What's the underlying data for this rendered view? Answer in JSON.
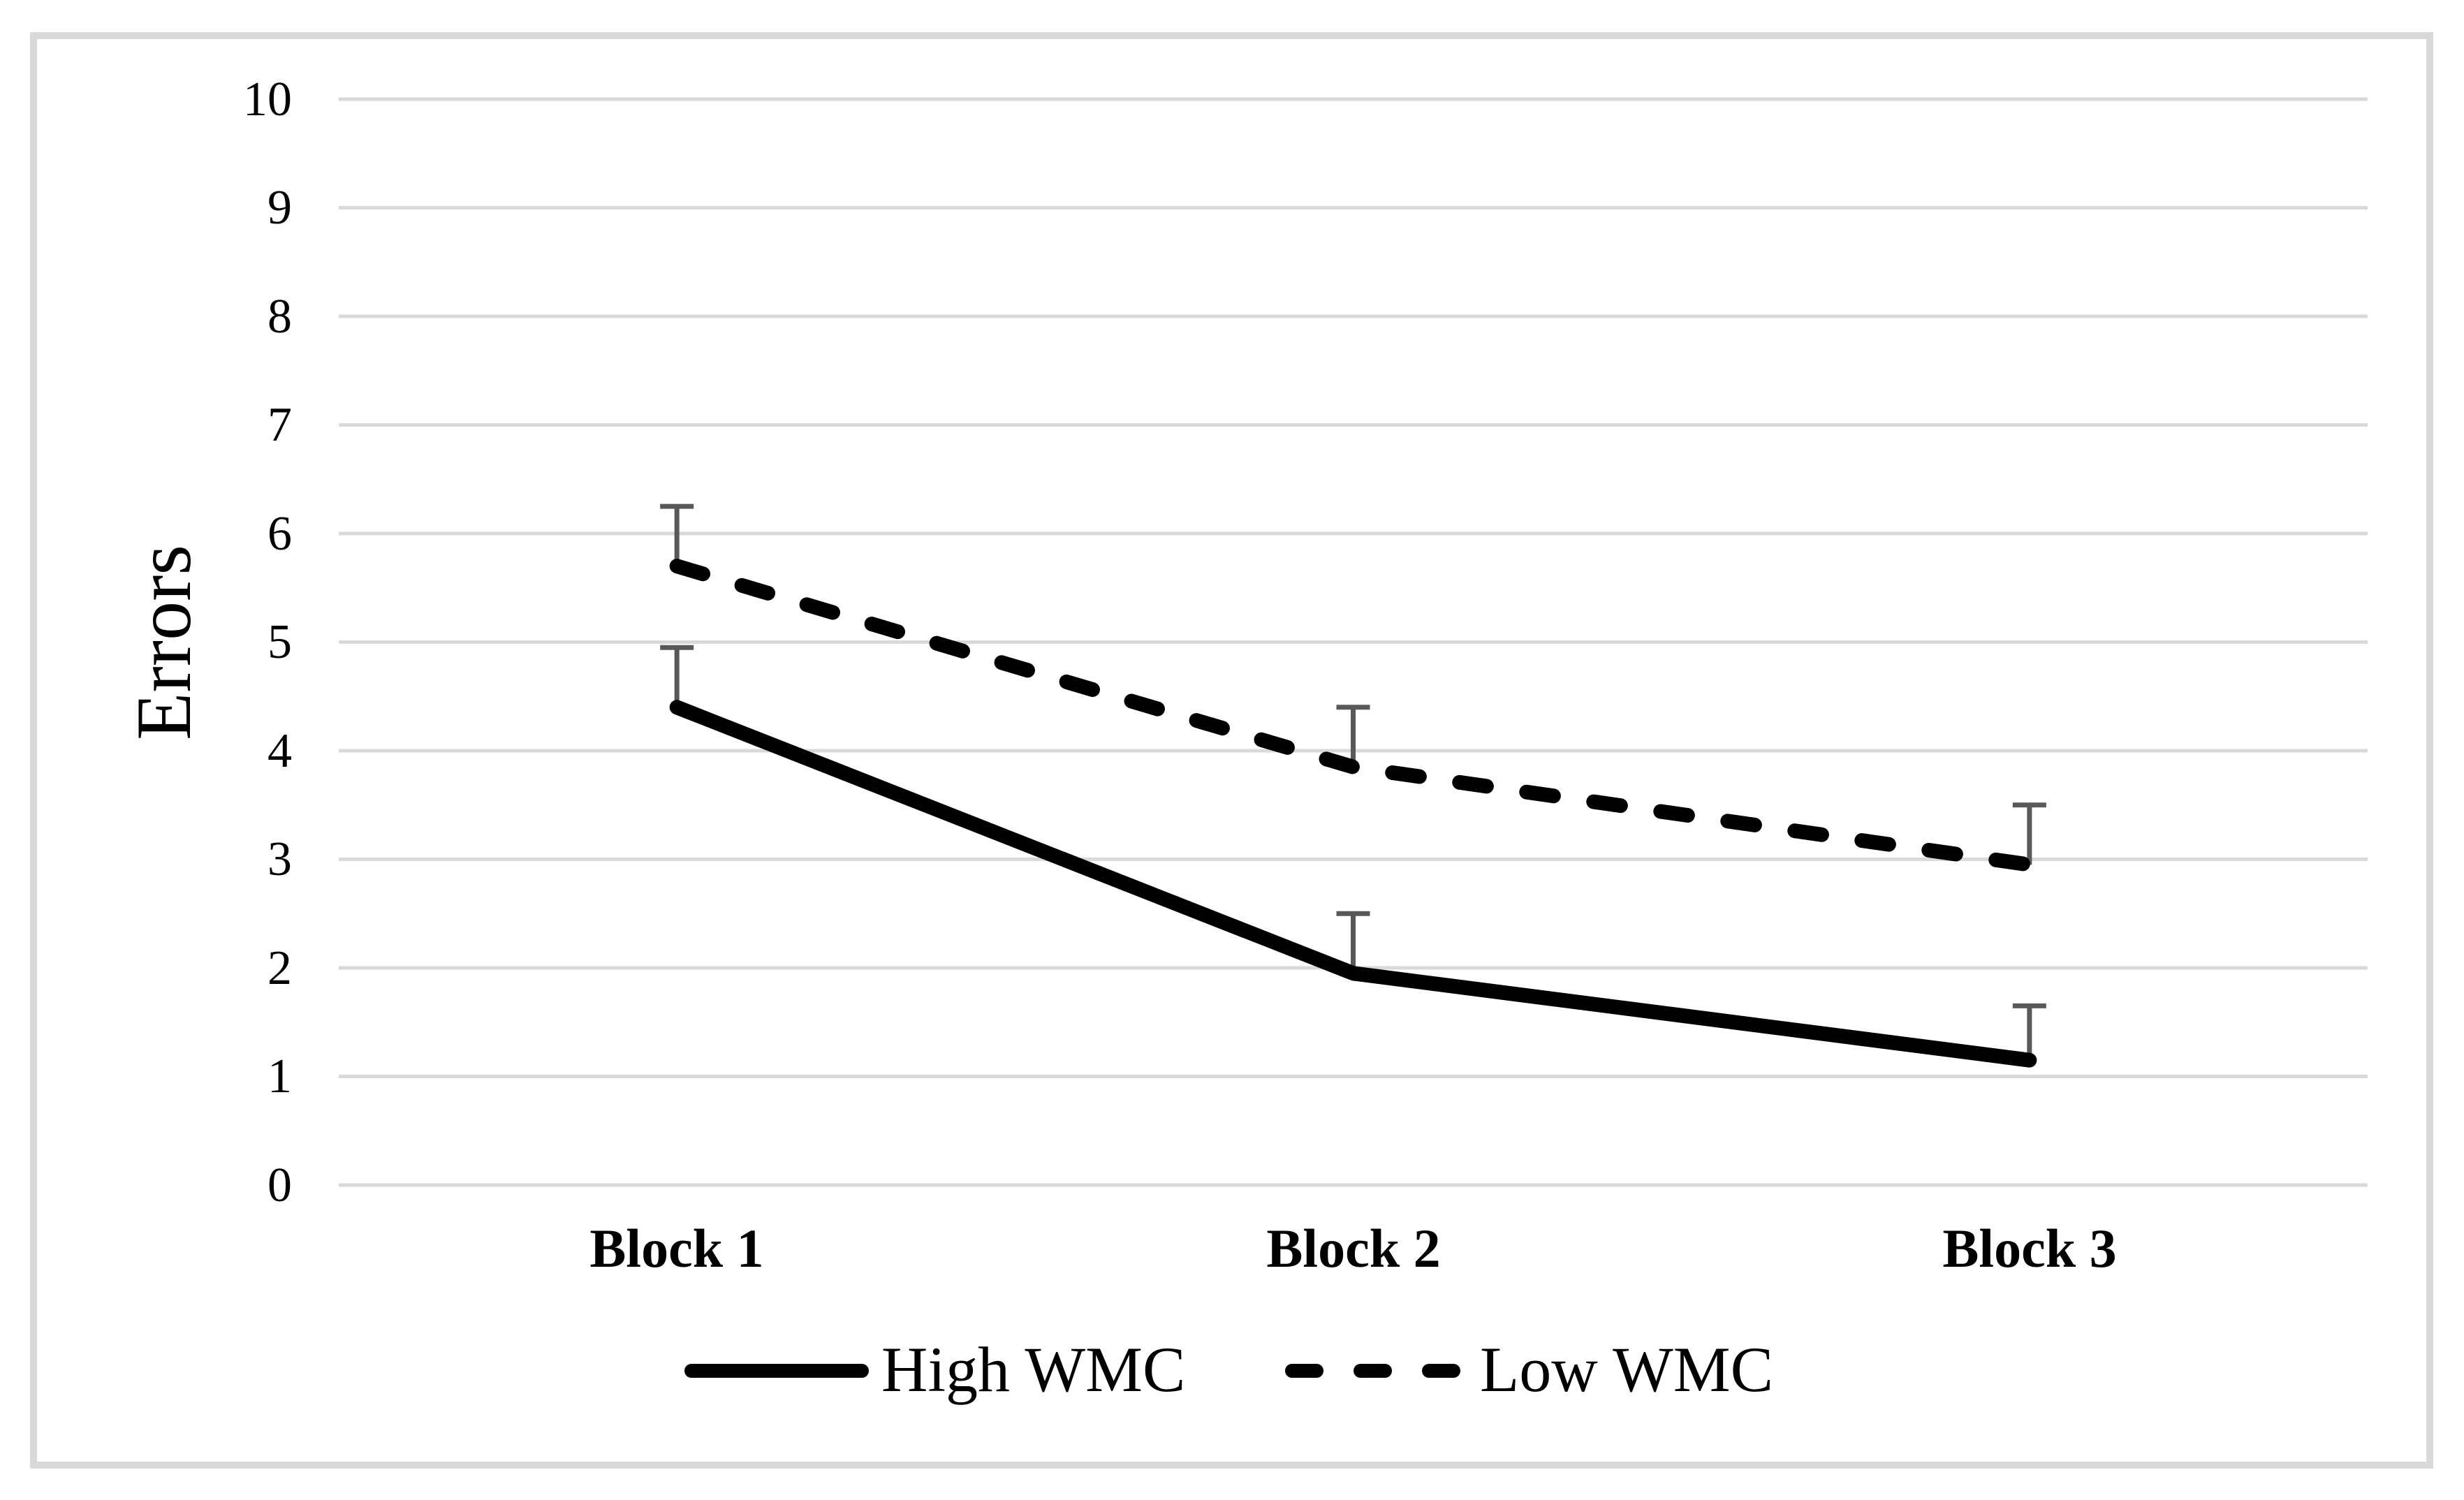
{
  "figure": {
    "background": "#ffffff"
  },
  "chart_data": {
    "type": "line",
    "title": "",
    "xlabel": "",
    "ylabel": "Errors",
    "categories": [
      "Block 1",
      "Block 2",
      "Block 3"
    ],
    "series": [
      {
        "name": "High WMC",
        "style": "solid",
        "values": [
          4.4,
          1.95,
          1.15
        ],
        "errors_upper": [
          0.55,
          0.55,
          0.5
        ]
      },
      {
        "name": "Low WMC",
        "style": "dashed",
        "values": [
          5.7,
          3.85,
          2.95
        ],
        "errors_upper": [
          0.55,
          0.55,
          0.55
        ]
      }
    ],
    "ylim": [
      0,
      10
    ],
    "ytick_step": 1,
    "ytick_labels": [
      "0",
      "1",
      "2",
      "3",
      "4",
      "5",
      "6",
      "7",
      "8",
      "9",
      "10"
    ],
    "grid": "horizontal-only",
    "error_bars": "upper-only",
    "markers": "none",
    "legend": {
      "position": "bottom-center",
      "entries": [
        {
          "label": "High WMC",
          "style": "solid"
        },
        {
          "label": "Low WMC",
          "style": "dashed"
        }
      ]
    },
    "colors": {
      "series_line": "#000000",
      "gridline": "#d9d9d9",
      "error_bar": "#595959",
      "frame_border": "#d9d9d9",
      "text": "#000000",
      "background": "#ffffff"
    }
  }
}
